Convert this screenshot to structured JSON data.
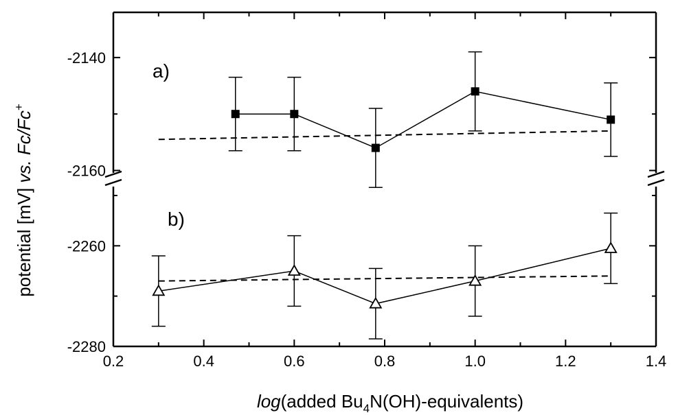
{
  "chart_data": {
    "type": "scatter",
    "xlabel": {
      "italic": "log",
      "pre": "(added Bu",
      "sub": "4",
      "post": "N(OH)-equivalents)"
    },
    "ylabel": {
      "pre": "potential [mV] ",
      "vs": "vs.",
      "fc": " Fc/Fc",
      "sup": "+"
    },
    "xlim": [
      0.2,
      1.4
    ],
    "x_ticks": [
      "0.2",
      "0.4",
      "0.6",
      "0.8",
      "1.0",
      "1.2",
      "1.4"
    ],
    "broken_y_axis": true,
    "panels": [
      {
        "label": "a)",
        "ylim": [
          -2162,
          -2132
        ],
        "y_ticks": [
          "-2140",
          "-2160"
        ],
        "marker": "filled-square",
        "line": "solid",
        "x": [
          0.47,
          0.6,
          0.78,
          1.0,
          1.3
        ],
        "y": [
          -2150,
          -2150,
          -2156,
          -2146,
          -2151
        ],
        "error": [
          6.5,
          6.5,
          7,
          7,
          6.5
        ],
        "fit_line": {
          "style": "dashed",
          "x": [
            0.3,
            1.3
          ],
          "y": [
            -2154.5,
            -2153
          ]
        }
      },
      {
        "label": "b)",
        "ylim": [
          -2280,
          -2247
        ],
        "y_ticks": [
          "-2260",
          "-2280"
        ],
        "marker": "open-triangle",
        "line": "solid",
        "x": [
          0.3,
          0.6,
          0.78,
          1.0,
          1.3
        ],
        "y": [
          -2269,
          -2265,
          -2271.5,
          -2267,
          -2260.5
        ],
        "error": [
          7,
          7,
          7,
          7,
          7
        ],
        "fit_line": {
          "style": "dashed",
          "x": [
            0.3,
            1.3
          ],
          "y": [
            -2267,
            -2266
          ]
        }
      }
    ]
  }
}
